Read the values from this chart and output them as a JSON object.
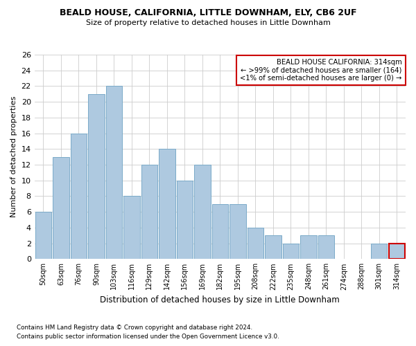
{
  "title1": "BEALD HOUSE, CALIFORNIA, LITTLE DOWNHAM, ELY, CB6 2UF",
  "title2": "Size of property relative to detached houses in Little Downham",
  "xlabel": "Distribution of detached houses by size in Little Downham",
  "ylabel": "Number of detached properties",
  "categories": [
    "50sqm",
    "63sqm",
    "76sqm",
    "90sqm",
    "103sqm",
    "116sqm",
    "129sqm",
    "142sqm",
    "156sqm",
    "169sqm",
    "182sqm",
    "195sqm",
    "208sqm",
    "222sqm",
    "235sqm",
    "248sqm",
    "261sqm",
    "274sqm",
    "288sqm",
    "301sqm",
    "314sqm"
  ],
  "values": [
    6,
    13,
    16,
    21,
    22,
    8,
    12,
    14,
    10,
    12,
    7,
    7,
    4,
    3,
    2,
    3,
    3,
    0,
    0,
    2,
    2
  ],
  "bar_color": "#aec9e0",
  "bar_edge_color": "#7aaac8",
  "highlight_index": 20,
  "highlight_bar_edge_color": "#cc0000",
  "annotation_title": "BEALD HOUSE CALIFORNIA: 314sqm",
  "annotation_line1": "← >99% of detached houses are smaller (164)",
  "annotation_line2": "<1% of semi-detached houses are larger (0) →",
  "annotation_box_edge_color": "#cc0000",
  "ylim": [
    0,
    26
  ],
  "yticks": [
    0,
    2,
    4,
    6,
    8,
    10,
    12,
    14,
    16,
    18,
    20,
    22,
    24,
    26
  ],
  "footnote1": "Contains HM Land Registry data © Crown copyright and database right 2024.",
  "footnote2": "Contains public sector information licensed under the Open Government Licence v3.0.",
  "bg_color": "#ffffff",
  "grid_color": "#cccccc"
}
